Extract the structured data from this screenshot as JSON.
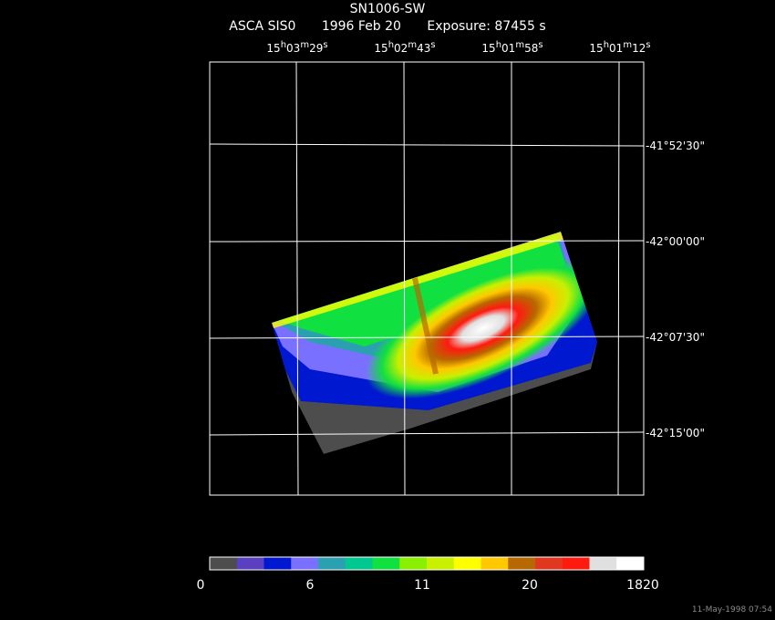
{
  "header": {
    "object": "SN1006-SW",
    "instrument": "ASCA SIS0",
    "date": "1996 Feb 20",
    "exposure": "Exposure: 87455 s"
  },
  "ra_ticks": [
    {
      "h": "15",
      "m": "03",
      "s": "29"
    },
    {
      "h": "15",
      "m": "02",
      "s": "43"
    },
    {
      "h": "15",
      "m": "01",
      "s": "58"
    },
    {
      "h": "15",
      "m": "01",
      "s": "12"
    }
  ],
  "dec_ticks": [
    "-41°52'30\"",
    "-42°00'00\"",
    "-42°07'30\"",
    "-42°15'00\""
  ],
  "colorbar": {
    "colors": [
      "#4d4d4d",
      "#5a3fc0",
      "#0018d0",
      "#7a70ff",
      "#2aa0b0",
      "#00c890",
      "#10e040",
      "#88f000",
      "#c8f000",
      "#ffff00",
      "#ffc800",
      "#b86800",
      "#e03820",
      "#ff1a10",
      "#e0e0e0",
      "#ffffff"
    ],
    "labels": [
      "0",
      "6",
      "11",
      "20",
      "1820"
    ]
  },
  "footer": "11-May-1998 07:54"
}
